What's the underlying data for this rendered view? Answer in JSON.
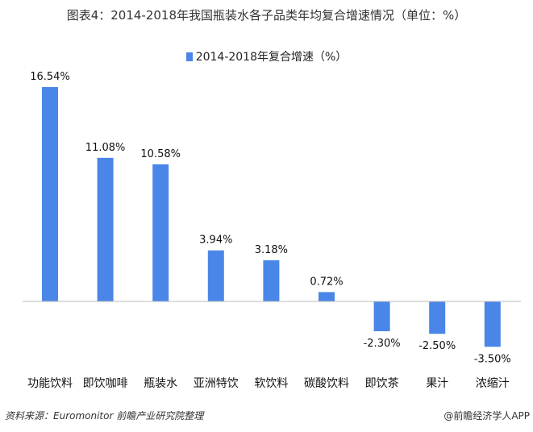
{
  "title": "图表4：2014-2018年我国瓶装水各子品类年均复合增速情况（单位：%）",
  "source": "资料来源：Euromonitor 前瞻产业研究院整理",
  "credit": "@前瞻经济学人APP",
  "colors": {
    "bar": "#4a86e8"
  },
  "chart_data": {
    "type": "bar",
    "title": "图表4：2014-2018年我国瓶装水各子品类年均复合增速情况（单位：%）",
    "categories": [
      "功能饮料",
      "即饮咖啡",
      "瓶装水",
      "亚洲特饮",
      "软饮料",
      "碳酸饮料",
      "即饮茶",
      "果汁",
      "浓缩汁"
    ],
    "series": [
      {
        "name": "2014-2018年复合增速（%）",
        "values": [
          16.54,
          11.08,
          10.58,
          3.94,
          3.18,
          0.72,
          -2.3,
          -2.5,
          -3.5
        ]
      }
    ],
    "data_labels": [
      "16.54%",
      "11.08%",
      "10.58%",
      "3.94%",
      "3.18%",
      "0.72%",
      "-2.30%",
      "-2.50%",
      "-3.50%"
    ],
    "legend_position": "top",
    "grid": false
  }
}
